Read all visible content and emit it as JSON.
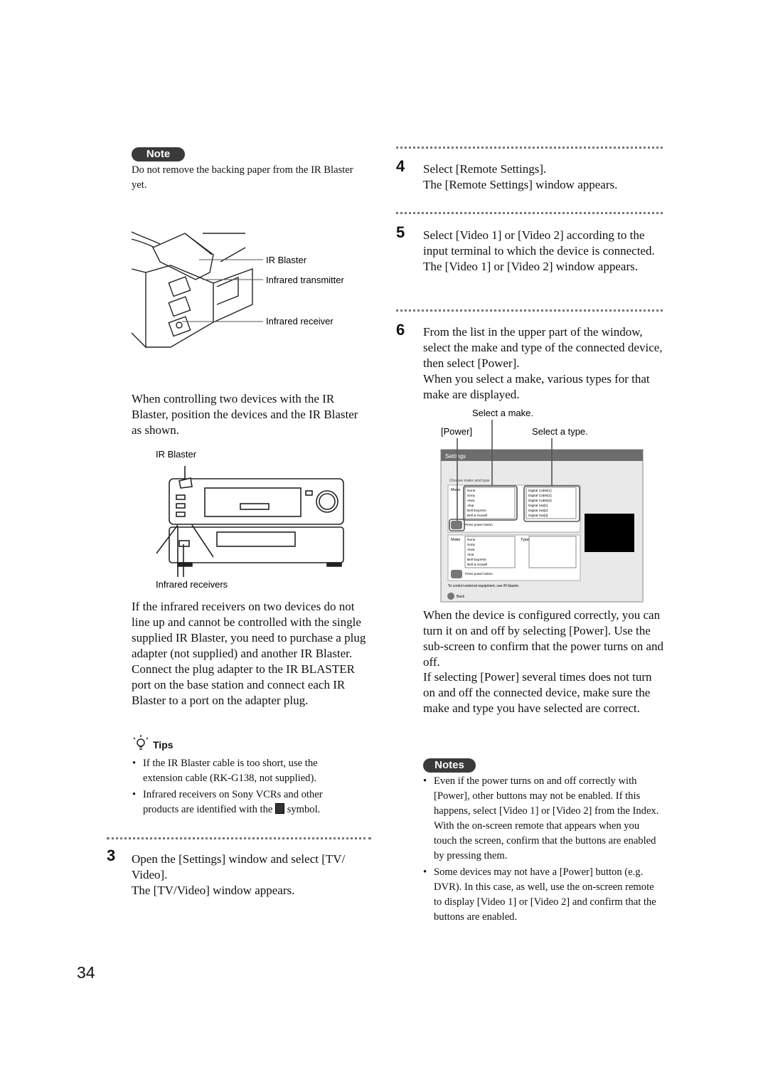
{
  "note": {
    "label": "Note",
    "text": "Do not remove the backing paper from the IR Blaster yet."
  },
  "figure_1": {
    "labels": [
      "IR Blaster",
      "Infrared transmitter",
      "Infrared receiver"
    ]
  },
  "paragraphs_left": [
    "When controlling two devices with the IR Blaster, position the devices and the IR Blaster as shown.",
    "If the infrared receivers on two devices do not line up and cannot be controlled with the single supplied IR Blaster, you need to purchase a plug adapter (not supplied) and another IR Blaster. Connect the plug adapter to the IR BLASTER port on the base station and connect each IR Blaster to a port on the adapter plug."
  ],
  "figure_2": {
    "labels": [
      "IR Blaster",
      "Infrared receivers"
    ]
  },
  "tips": {
    "title": "Tips",
    "items": [
      {
        "text": "If the IR Blaster cable is too short, use the extension cable (RK-G138, not supplied)."
      },
      {
        "before": "Infrared receivers on Sony VCRs and other products are identified with the",
        "after": "symbol."
      }
    ]
  },
  "steps": [
    {
      "number": "3",
      "instruction": "Open the [Settings] window and select [TV/ Video].",
      "result": "The [TV/Video] window appears."
    },
    {
      "number": "4",
      "instruction": "Select [Remote Settings].",
      "result": "The [Remote Settings] window appears."
    },
    {
      "number": "5",
      "instruction": "Select [Video 1] or [Video 2] according to the input terminal to which the device is connected.",
      "result": "The [Video 1] or [Video 2] window appears."
    },
    {
      "number": "6",
      "instruction": "From the list in the upper part of the window, select the make and type of the connected device, then select [Power].",
      "result": "When you select a make, various types for that make are displayed."
    }
  ],
  "screenshot": {
    "callouts": [
      "Select a make.",
      "[Power]",
      "Select a type."
    ],
    "window": {
      "title": "Settings",
      "heading": "Choose make and type",
      "make_label": "Make",
      "type_label": "Type",
      "makes": [
        "None",
        "Sony",
        "Aiwa",
        "Akai",
        "Bell Express",
        "Bell & Howell"
      ],
      "types": [
        "Digital Cable[1]",
        "Digital Cable[2]",
        "Digital Cable[3]",
        "Digital Sat[1]",
        "Digital Sat[2]",
        "Digital Sat[3]"
      ],
      "hint": "Press power button.",
      "footer": "To control external equipment, use IR blaster.",
      "back": "Back"
    }
  },
  "paragraphs_right": [
    "When the device is configured correctly, you can turn it on and off by selecting [Power]. Use the sub-screen to confirm that the power turns on and off.",
    "If selecting [Power] several times does not turn on and off the connected device, make sure the make and type you have selected are correct."
  ],
  "notes": {
    "label": "Notes",
    "items": [
      "Even if the power turns on and off correctly with [Power], other buttons may not be enabled. If this happens, select [Video 1] or [Video 2] from the Index. With the on-screen remote that appears when you touch the screen, confirm that the buttons are enabled by pressing them.",
      "Some devices may not have a [Power] button (e.g. DVR). In this case, as well, use the on-screen remote to display [Video 1] or [Video 2] and confirm that the buttons are enabled."
    ]
  },
  "page_number": "34"
}
